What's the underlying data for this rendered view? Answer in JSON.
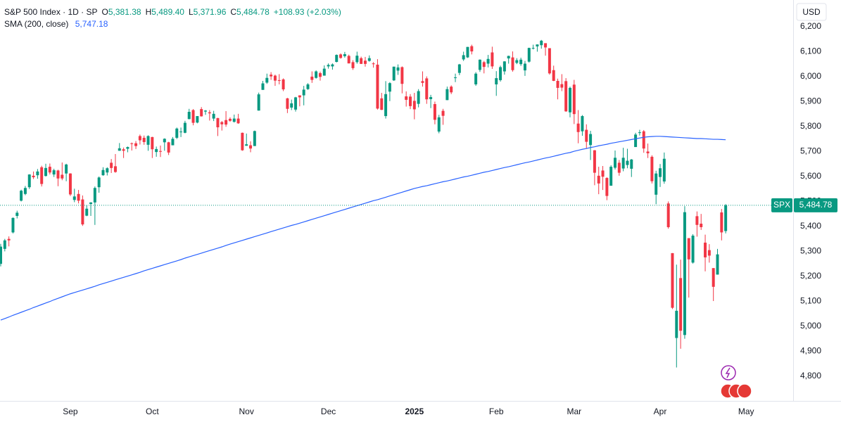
{
  "chart_data": {
    "type": "candlestick",
    "title": "S&P 500 Index · 1D · SP",
    "stats": [
      {
        "key": "O",
        "value": "5,381.38"
      },
      {
        "key": "H",
        "value": "5,489.40"
      },
      {
        "key": "L",
        "value": "5,371.96"
      },
      {
        "key": "C",
        "value": "5,484.78"
      }
    ],
    "change": "+108.93 (+2.03%)",
    "currency": "USD",
    "price_tag": "SPX",
    "price_label": "5,484.78",
    "up_color": "#089981",
    "down_color": "#f23645",
    "open": [
      5250,
      5310,
      5350,
      5376,
      5442,
      5503,
      5530,
      5557,
      5603,
      5605,
      5637,
      5602,
      5639,
      5608,
      5624,
      5607,
      5612,
      5612,
      5506,
      5530,
      5508,
      5443,
      5490,
      5496,
      5557,
      5605,
      5616,
      5655,
      5641,
      5703,
      5709,
      5711,
      5733,
      5733,
      5762,
      5755,
      5727,
      5758,
      5698,
      5702,
      5737,
      5737,
      5725,
      5755,
      5778,
      5775,
      5830,
      5866,
      5816,
      5870,
      5860,
      5857,
      5832,
      5834,
      5818,
      5826,
      5831,
      5819,
      5832,
      5775,
      5723,
      5725,
      5722,
      5864,
      5947,
      5976,
      6008,
      6004,
      5986,
      5989,
      5913,
      5876,
      5868,
      5925,
      5925,
      5950,
      6000,
      5995,
      6014,
      6004,
      6041,
      6041,
      6059,
      6089,
      6082,
      6083,
      6058,
      6058,
      6074,
      6064,
      6063,
      6053,
      6048,
      5913,
      5842,
      5940,
      5985,
      6024,
      6038,
      5921,
      5920,
      5903,
      5891,
      5982,
      5993,
      5910,
      5890,
      5780,
      5863,
      5906,
      5960,
      5995,
      6015,
      6069,
      6077,
      6122,
      5969,
      6027,
      6058,
      6052,
      6097,
      5969,
      5986,
      6021,
      6073,
      6077,
      6055,
      6050,
      6025,
      6060,
      6115,
      6121,
      6126,
      6134,
      6114,
      6026,
      5983,
      5970,
      5982,
      5857,
      5968,
      5812,
      5781,
      5787,
      5726,
      5705,
      5603,
      5624,
      5594,
      5563,
      5635,
      5655,
      5632,
      5646,
      5631,
      5718,
      5775,
      5781,
      5700,
      5679,
      5527,
      5598,
      5580,
      5492,
      5293,
      4953,
      5193,
      4965,
      5353,
      5255,
      5441,
      5411,
      5335,
      5305,
      5233,
      5207,
      5456,
      5381.38
    ],
    "high": [
      5330,
      5350,
      5360,
      5436,
      5463,
      5547,
      5562,
      5609,
      5620,
      5630,
      5643,
      5651,
      5652,
      5631,
      5627,
      5656,
      5651,
      5613,
      5551,
      5546,
      5524,
      5485,
      5497,
      5560,
      5600,
      5637,
      5637,
      5670,
      5690,
      5734,
      5716,
      5720,
      5736,
      5742,
      5768,
      5764,
      5765,
      5759,
      5720,
      5724,
      5753,
      5739,
      5758,
      5796,
      5796,
      5823,
      5871,
      5870,
      5842,
      5878,
      5866,
      5866,
      5863,
      5835,
      5822,
      5862,
      5837,
      5848,
      5851,
      5776,
      5772,
      5741,
      5784,
      5936,
      5983,
      6012,
      6018,
      6008,
      6010,
      5993,
      5915,
      5908,
      5919,
      5925,
      5963,
      5974,
      6021,
      6025,
      6020,
      6045,
      6053,
      6053,
      6089,
      6093,
      6099,
      6088,
      6066,
      6100,
      6080,
      6079,
      6085,
      6058,
      6070,
      5935,
      5982,
      5978,
      6040,
      6049,
      6041,
      5941,
      5930,
      5935,
      5950,
      6021,
      6001,
      5927,
      5900,
      5847,
      5871,
      5960,
      5965,
      6012,
      6051,
      6100,
      6119,
      6128,
      6018,
      6069,
      6063,
      6087,
      6120,
      6022,
      6044,
      6062,
      6084,
      6101,
      6074,
      6076,
      6063,
      6116,
      6128,
      6129,
      6147,
      6134,
      6114,
      6044,
      5992,
      6010,
      5994,
      5960,
      5987,
      5866,
      5846,
      5809,
      5783,
      5706,
      5639,
      5642,
      5597,
      5645,
      5704,
      5666,
      5715,
      5711,
      5670,
      5775,
      5787,
      5786,
      5732,
      5685,
      5623,
      5650,
      5696,
      5500,
      5293,
      5247,
      5267,
      5481,
      5353,
      5369,
      5460,
      5450,
      5367,
      5329,
      5233,
      5310,
      5470,
      5489.4
    ],
    "low": [
      5240,
      5300,
      5320,
      5372,
      5432,
      5500,
      5525,
      5550,
      5590,
      5591,
      5560,
      5600,
      5608,
      5598,
      5561,
      5585,
      5581,
      5522,
      5497,
      5492,
      5402,
      5441,
      5442,
      5406,
      5535,
      5603,
      5604,
      5614,
      5615,
      5703,
      5674,
      5697,
      5704,
      5710,
      5728,
      5727,
      5703,
      5674,
      5679,
      5678,
      5703,
      5686,
      5725,
      5750,
      5758,
      5773,
      5829,
      5805,
      5813,
      5840,
      5847,
      5824,
      5822,
      5762,
      5784,
      5799,
      5819,
      5816,
      5811,
      5703,
      5723,
      5697,
      5722,
      5864,
      5947,
      5971,
      5987,
      5963,
      5969,
      5942,
      5854,
      5866,
      5860,
      5881,
      5885,
      5947,
      5975,
      5992,
      5984,
      6004,
      6032,
      6028,
      6057,
      6072,
      6076,
      6053,
      6027,
      6052,
      6051,
      6040,
      6060,
      6036,
      5868,
      5866,
      5832,
      5902,
      5983,
      6007,
      5933,
      5880,
      5870,
      5829,
      5877,
      5960,
      5891,
      5874,
      5809,
      5773,
      5807,
      5906,
      5930,
      5978,
      6006,
      6063,
      6075,
      6089,
      5963,
      6019,
      6013,
      6037,
      6031,
      5923,
      5980,
      6008,
      6052,
      6020,
      6050,
      6043,
      6003,
      6056,
      6109,
      6100,
      6112,
      6084,
      6008,
      5982,
      5909,
      5942,
      5859,
      5837,
      5810,
      5733,
      5763,
      5711,
      5666,
      5565,
      5529,
      5546,
      5505,
      5563,
      5628,
      5603,
      5621,
      5633,
      5598,
      5718,
      5764,
      5695,
      5674,
      5572,
      5489,
      5558,
      5571,
      5391,
      5069,
      4835,
      4910,
      4950,
      5115,
      5251,
      5359,
      5386,
      5220,
      5255,
      5101,
      5207,
      5344,
      5371.96
    ],
    "close": [
      5319,
      5344,
      5344,
      5434,
      5455,
      5543,
      5554,
      5608,
      5597,
      5620,
      5570,
      5634,
      5616,
      5625,
      5592,
      5592,
      5648,
      5528,
      5520,
      5503,
      5408,
      5471,
      5496,
      5554,
      5596,
      5626,
      5633,
      5634,
      5618,
      5713,
      5703,
      5718,
      5732,
      5722,
      5745,
      5738,
      5762,
      5709,
      5710,
      5699,
      5751,
      5696,
      5751,
      5792,
      5780,
      5815,
      5859,
      5815,
      5842,
      5841,
      5864,
      5853,
      5851,
      5797,
      5809,
      5808,
      5823,
      5832,
      5813,
      5705,
      5729,
      5712,
      5782,
      5929,
      5973,
      5995,
      6001,
      5984,
      5985,
      5949,
      5871,
      5893,
      5917,
      5917,
      5948,
      5969,
      5987,
      6021,
      5999,
      6032,
      6047,
      6049,
      6087,
      6075,
      6090,
      6053,
      6034,
      6084,
      6051,
      6051,
      6074,
      6050,
      5872,
      5867,
      5930,
      5974,
      6040,
      6037,
      5971,
      5907,
      5882,
      5869,
      5942,
      5975,
      5909,
      5918,
      5827,
      5837,
      5843,
      5950,
      5937,
      5997,
      6049,
      6086,
      6119,
      6101,
      6012,
      6068,
      6039,
      6071,
      6041,
      5994,
      6038,
      6061,
      6083,
      6026,
      6066,
      6068,
      6052,
      6115,
      6115,
      6129,
      6144,
      6117,
      6013,
      5983,
      5955,
      5956,
      5861,
      5955,
      5850,
      5778,
      5842,
      5739,
      5770,
      5615,
      5572,
      5599,
      5522,
      5639,
      5675,
      5615,
      5675,
      5663,
      5668,
      5768,
      5777,
      5712,
      5693,
      5581,
      5612,
      5633,
      5671,
      5397,
      5074,
      5062,
      4982,
      5457,
      5268,
      5363,
      5406,
      5397,
      5276,
      5283,
      5158,
      5288,
      5376,
      5484.78
    ],
    "sma": {
      "name": "SMA (200, close)",
      "value_label": "5,747.18",
      "color": "#2962ff",
      "values": [
        5025,
        5031,
        5037,
        5044,
        5050,
        5056,
        5062,
        5068,
        5075,
        5081,
        5087,
        5093,
        5099,
        5106,
        5112,
        5118,
        5124,
        5130,
        5135,
        5140,
        5145,
        5150,
        5155,
        5160,
        5166,
        5171,
        5176,
        5181,
        5186,
        5191,
        5196,
        5201,
        5206,
        5211,
        5216,
        5222,
        5227,
        5232,
        5237,
        5242,
        5247,
        5252,
        5257,
        5262,
        5267,
        5273,
        5278,
        5283,
        5288,
        5293,
        5298,
        5303,
        5308,
        5313,
        5318,
        5324,
        5329,
        5334,
        5339,
        5344,
        5349,
        5354,
        5359,
        5364,
        5369,
        5374,
        5379,
        5384,
        5389,
        5394,
        5399,
        5404,
        5408,
        5413,
        5418,
        5423,
        5428,
        5433,
        5438,
        5443,
        5448,
        5453,
        5458,
        5463,
        5468,
        5473,
        5478,
        5483,
        5488,
        5493,
        5498,
        5503,
        5507,
        5512,
        5517,
        5522,
        5527,
        5532,
        5537,
        5542,
        5547,
        5552,
        5556,
        5560,
        5563,
        5567,
        5571,
        5575,
        5579,
        5582,
        5586,
        5590,
        5594,
        5598,
        5601,
        5605,
        5609,
        5613,
        5617,
        5620,
        5624,
        5628,
        5632,
        5636,
        5639,
        5643,
        5647,
        5651,
        5655,
        5658,
        5662,
        5666,
        5670,
        5674,
        5677,
        5681,
        5685,
        5689,
        5693,
        5696,
        5701,
        5705,
        5709,
        5712,
        5716,
        5719,
        5723,
        5726,
        5729,
        5733,
        5736,
        5739,
        5742,
        5745,
        5748,
        5751,
        5754,
        5757,
        5759,
        5760,
        5761,
        5761,
        5760,
        5759,
        5758,
        5757,
        5756,
        5755,
        5754,
        5753,
        5752,
        5752,
        5751,
        5750,
        5749,
        5749,
        5748,
        5747.18
      ]
    },
    "ylim": [
      4701,
      6307
    ],
    "yticks": [
      {
        "value": 4800,
        "label": "4,800"
      },
      {
        "value": 4900,
        "label": "4,900"
      },
      {
        "value": 5000,
        "label": "5,000"
      },
      {
        "value": 5100,
        "label": "5,100"
      },
      {
        "value": 5200,
        "label": "5,200"
      },
      {
        "value": 5300,
        "label": "5,300"
      },
      {
        "value": 5400,
        "label": "5,400"
      },
      {
        "value": 5500,
        "label": "5,500"
      },
      {
        "value": 5600,
        "label": "5,600"
      },
      {
        "value": 5700,
        "label": "5,700"
      },
      {
        "value": 5800,
        "label": "5,800"
      },
      {
        "value": 5900,
        "label": "5,900"
      },
      {
        "value": 6000,
        "label": "6,000"
      },
      {
        "value": 6100,
        "label": "6,100"
      },
      {
        "value": 6200,
        "label": "6,200"
      }
    ],
    "xticks": [
      {
        "value": 17,
        "label": "Sep"
      },
      {
        "value": 37,
        "label": "Oct"
      },
      {
        "value": 60,
        "label": "Nov"
      },
      {
        "value": 80,
        "label": "Dec"
      },
      {
        "value": 101,
        "label": "2025"
      },
      {
        "value": 121,
        "label": "Feb"
      },
      {
        "value": 140,
        "label": "Mar"
      },
      {
        "value": 161,
        "label": "Apr"
      },
      {
        "value": 182,
        "label": "May"
      }
    ]
  }
}
